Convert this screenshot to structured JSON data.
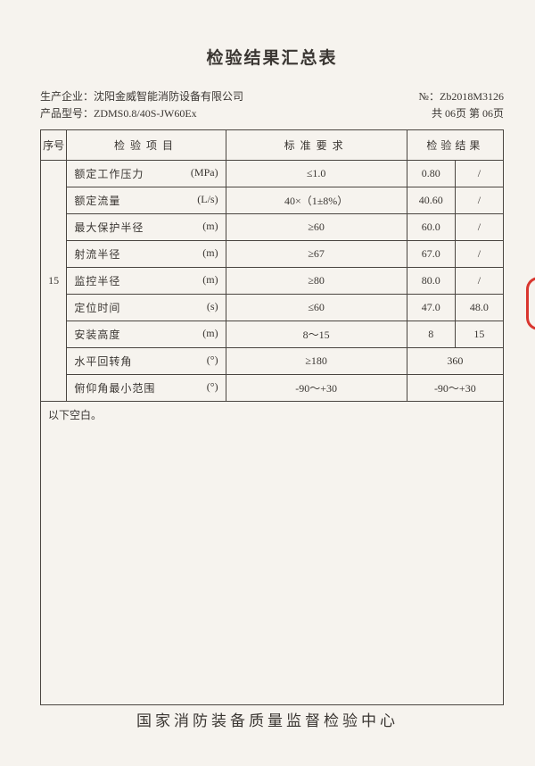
{
  "title": "检验结果汇总表",
  "meta": {
    "manufacturer_label": "生产企业：",
    "manufacturer": "沈阳金威智能消防设备有限公司",
    "model_label": "产品型号：",
    "model": "ZDMS0.8/40S-JW60Ex",
    "report_no_label": "№：",
    "report_no": "Zb2018M3126",
    "page_info": "共 06页 第 06页"
  },
  "headers": {
    "seq": "序号",
    "item": "检验项目",
    "req": "标准要求",
    "res": "检验结果"
  },
  "seq_value": "15",
  "rows": [
    {
      "item": "额定工作压力",
      "unit": "(MPa)",
      "req": "≤1.0",
      "r1": "0.80",
      "r2": "/"
    },
    {
      "item": "额定流量",
      "unit": "(L/s)",
      "req": "40×（1±8%）",
      "r1": "40.60",
      "r2": "/"
    },
    {
      "item": "最大保护半径",
      "unit": "(m)",
      "req": "≥60",
      "r1": "60.0",
      "r2": "/"
    },
    {
      "item": "射流半径",
      "unit": "(m)",
      "req": "≥67",
      "r1": "67.0",
      "r2": "/"
    },
    {
      "item": "监控半径",
      "unit": "(m)",
      "req": "≥80",
      "r1": "80.0",
      "r2": "/"
    },
    {
      "item": "定位时间",
      "unit": "(s)",
      "req": "≤60",
      "r1": "47.0",
      "r2": "48.0"
    },
    {
      "item": "安装高度",
      "unit": "(m)",
      "req": "8～15",
      "r1": "8",
      "r2": "15"
    },
    {
      "item": "水平回转角",
      "unit": "(°)",
      "req": "≥180",
      "merged": "360"
    },
    {
      "item": "俯仰角最小范围",
      "unit": "(°)",
      "req": "-90～+30",
      "merged": "-90～+30"
    }
  ],
  "blank_text": "以下空白。",
  "footer": "国家消防装备质量监督检验中心",
  "colors": {
    "paper": "#f6f3ee",
    "ink": "#3a3632",
    "border": "#4a4540",
    "red": "#d9362f"
  }
}
